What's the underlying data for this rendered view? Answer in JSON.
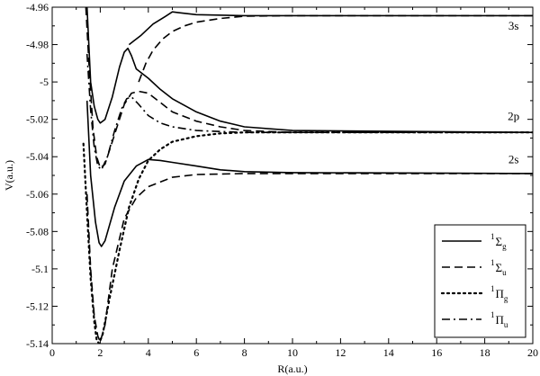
{
  "chart_data": {
    "type": "line",
    "xlabel": "R(a.u.)",
    "ylabel": "V(a.u.)",
    "xlim": [
      0,
      20
    ],
    "ylim": [
      -5.14,
      -4.96
    ],
    "xticks": [
      0,
      2,
      4,
      6,
      8,
      10,
      12,
      14,
      16,
      18,
      20
    ],
    "yticks": [
      -5.14,
      -5.12,
      -5.1,
      -5.08,
      -5.06,
      -5.04,
      -5.02,
      -5.0,
      -4.98,
      -4.96
    ],
    "xtick_labels": [
      "0",
      "2",
      "4",
      "6",
      "8",
      "10",
      "12",
      "14",
      "16",
      "18",
      "20"
    ],
    "ytick_labels": [
      "-5.14",
      "-5.12",
      "-5.1",
      "-5.08",
      "-5.06",
      "-5.04",
      "-5.02",
      "-5",
      "-4.98",
      "-4.96"
    ],
    "grid": false,
    "legend_position": "bottom-right",
    "annotations": [
      {
        "text": "3s",
        "x": 19.2,
        "y": -4.972
      },
      {
        "text": "2p",
        "x": 19.2,
        "y": -5.0205
      },
      {
        "text": "2s",
        "x": 19.2,
        "y": -5.0435
      }
    ],
    "series": [
      {
        "name": "Σg",
        "style": "solid",
        "values": [
          [
            1.45,
            -4.96
          ],
          [
            1.6,
            -5.0
          ],
          [
            1.75,
            -5.013
          ],
          [
            1.9,
            -5.02
          ],
          [
            2.0,
            -5.022
          ],
          [
            2.2,
            -5.02
          ],
          [
            2.5,
            -5.008
          ],
          [
            2.8,
            -4.992
          ],
          [
            3.0,
            -4.984
          ],
          [
            3.15,
            -4.982
          ],
          [
            3.3,
            -4.986
          ],
          [
            3.5,
            -4.993
          ],
          [
            4.0,
            -4.998
          ],
          [
            4.5,
            -5.004
          ],
          [
            5.0,
            -5.009
          ],
          [
            6.0,
            -5.016
          ],
          [
            7.0,
            -5.021
          ],
          [
            8.0,
            -5.024
          ],
          [
            10.0,
            -5.026
          ],
          [
            20.0,
            -5.027
          ]
        ]
      },
      {
        "name": "Σg",
        "style": "solid",
        "values": [
          [
            1.45,
            -5.01
          ],
          [
            1.6,
            -5.05
          ],
          [
            1.8,
            -5.075
          ],
          [
            1.95,
            -5.086
          ],
          [
            2.05,
            -5.088
          ],
          [
            2.2,
            -5.085
          ],
          [
            2.6,
            -5.067
          ],
          [
            3.0,
            -5.053
          ],
          [
            3.5,
            -5.045
          ],
          [
            4.0,
            -5.0415
          ],
          [
            4.5,
            -5.042
          ],
          [
            5.0,
            -5.043
          ],
          [
            6.0,
            -5.045
          ],
          [
            7.0,
            -5.047
          ],
          [
            8.0,
            -5.048
          ],
          [
            10.0,
            -5.0485
          ],
          [
            20.0,
            -5.049
          ]
        ]
      },
      {
        "name": "Σg",
        "style": "solid",
        "values": [
          [
            3.2,
            -4.98
          ],
          [
            3.4,
            -4.978
          ],
          [
            3.7,
            -4.975
          ],
          [
            4.2,
            -4.969
          ],
          [
            4.7,
            -4.965
          ],
          [
            5.0,
            -4.9625
          ],
          [
            5.3,
            -4.963
          ],
          [
            6.0,
            -4.964
          ],
          [
            8.0,
            -4.9645
          ],
          [
            20.0,
            -4.9645
          ]
        ]
      },
      {
        "name": "Σu",
        "style": "dashed",
        "values": [
          [
            1.4,
            -4.96
          ],
          [
            1.55,
            -4.995
          ],
          [
            1.7,
            -5.025
          ],
          [
            1.85,
            -5.04
          ],
          [
            2.0,
            -5.046
          ],
          [
            2.2,
            -5.044
          ],
          [
            2.6,
            -5.028
          ],
          [
            3.0,
            -5.012
          ],
          [
            3.3,
            -5.006
          ],
          [
            3.6,
            -5.005
          ],
          [
            4.0,
            -5.006
          ],
          [
            4.6,
            -5.012
          ],
          [
            5.0,
            -5.016
          ],
          [
            6.0,
            -5.021
          ],
          [
            7.0,
            -5.024
          ],
          [
            8.0,
            -5.026
          ],
          [
            10.0,
            -5.027
          ],
          [
            20.0,
            -5.027
          ]
        ]
      },
      {
        "name": "Σu",
        "style": "dashed",
        "values": [
          [
            1.45,
            -5.06
          ],
          [
            1.6,
            -5.1
          ],
          [
            1.75,
            -5.125
          ],
          [
            1.9,
            -5.136
          ],
          [
            2.0,
            -5.139
          ],
          [
            2.2,
            -5.13
          ],
          [
            2.5,
            -5.1
          ],
          [
            3.0,
            -5.073
          ],
          [
            3.5,
            -5.062
          ],
          [
            4.0,
            -5.056
          ],
          [
            5.0,
            -5.051
          ],
          [
            6.0,
            -5.0495
          ],
          [
            8.0,
            -5.049
          ],
          [
            20.0,
            -5.049
          ]
        ]
      },
      {
        "name": "Σu",
        "style": "dashed",
        "values": [
          [
            3.6,
            -5.0
          ],
          [
            3.9,
            -4.99
          ],
          [
            4.2,
            -4.983
          ],
          [
            4.6,
            -4.977
          ],
          [
            5.0,
            -4.973
          ],
          [
            5.5,
            -4.97
          ],
          [
            6.0,
            -4.968
          ],
          [
            7.0,
            -4.966
          ],
          [
            8.0,
            -4.9648
          ],
          [
            10.0,
            -4.9645
          ],
          [
            20.0,
            -4.9645
          ]
        ]
      },
      {
        "name": "Πg",
        "style": "dotted",
        "values": [
          [
            1.3,
            -5.033
          ],
          [
            1.45,
            -5.07
          ],
          [
            1.6,
            -5.105
          ],
          [
            1.75,
            -5.128
          ],
          [
            1.85,
            -5.138
          ],
          [
            1.95,
            -5.14
          ],
          [
            2.1,
            -5.135
          ],
          [
            2.4,
            -5.115
          ],
          [
            2.8,
            -5.09
          ],
          [
            3.2,
            -5.067
          ],
          [
            3.6,
            -5.052
          ],
          [
            4.0,
            -5.042
          ],
          [
            4.5,
            -5.036
          ],
          [
            5.0,
            -5.032
          ],
          [
            6.0,
            -5.029
          ],
          [
            7.0,
            -5.0275
          ],
          [
            8.0,
            -5.027
          ],
          [
            20.0,
            -5.027
          ]
        ]
      },
      {
        "name": "Πu",
        "style": "dashdot",
        "values": [
          [
            1.45,
            -4.985
          ],
          [
            1.6,
            -5.015
          ],
          [
            1.75,
            -5.035
          ],
          [
            1.9,
            -5.045
          ],
          [
            2.05,
            -5.047
          ],
          [
            2.3,
            -5.04
          ],
          [
            2.6,
            -5.026
          ],
          [
            2.9,
            -5.014
          ],
          [
            3.1,
            -5.009
          ],
          [
            3.3,
            -5.008
          ],
          [
            3.6,
            -5.012
          ],
          [
            4.0,
            -5.018
          ],
          [
            4.5,
            -5.022
          ],
          [
            5.0,
            -5.024
          ],
          [
            6.0,
            -5.026
          ],
          [
            7.0,
            -5.0265
          ],
          [
            8.0,
            -5.027
          ],
          [
            20.0,
            -5.027
          ]
        ]
      }
    ]
  },
  "legend": {
    "entries": [
      {
        "sup": "1",
        "sym": "Σ",
        "sub": "g",
        "style": "solid"
      },
      {
        "sup": "1",
        "sym": "Σ",
        "sub": "u",
        "style": "dashed"
      },
      {
        "sup": "1",
        "sym": "Π",
        "sub": "g",
        "style": "dotted"
      },
      {
        "sup": "1",
        "sym": "Π",
        "sub": "u",
        "style": "dashdot"
      }
    ]
  },
  "colors": {
    "line": "#000000",
    "background": "#ffffff"
  }
}
